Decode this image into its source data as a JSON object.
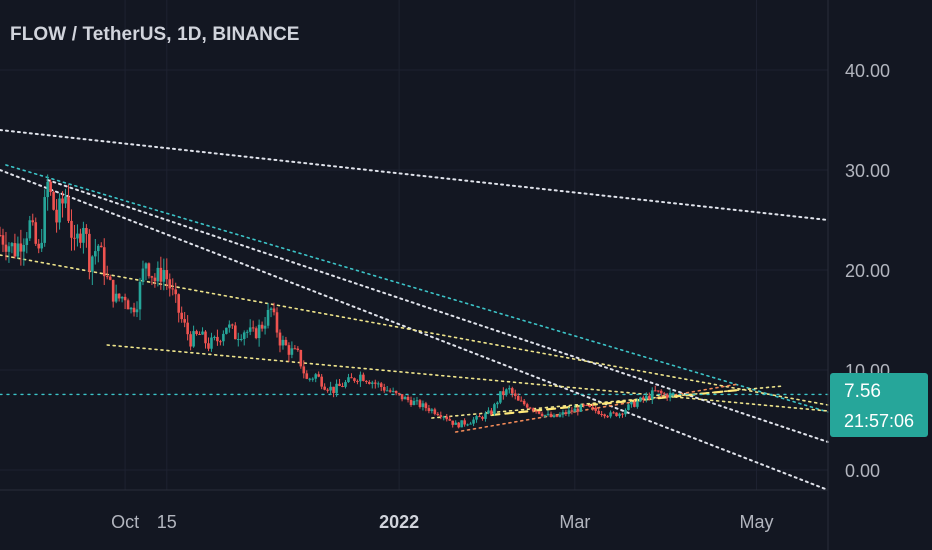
{
  "header": {
    "title": "FLOW / TetherUS, 1D, BINANCE"
  },
  "last_price": {
    "value": "7.56",
    "countdown": "21:57:06",
    "color": "#26a69a"
  },
  "colors": {
    "up": "#26a69a",
    "down": "#ef5350",
    "background": "#131722",
    "grid": "#1e2230",
    "white_line": "#e0e3eb",
    "cyan_line": "#3cc4c8",
    "yellow_line": "#f0e68c",
    "dashed_line": "#ffe97a",
    "orange_line": "#f28a58"
  },
  "chart_data": {
    "type": "candlestick",
    "symbol": "FLOW / TetherUS",
    "interval": "1D",
    "exchange": "BINANCE",
    "y_ticks": [
      "40.00",
      "30.00",
      "20.00",
      "10.00",
      "0.00"
    ],
    "y_tick_values": [
      40,
      30,
      20,
      10,
      0
    ],
    "ylim": [
      -2,
      45
    ],
    "x_ticks": [
      {
        "label": "Oct",
        "date": "2021-10-01"
      },
      {
        "label": "15",
        "date": "2021-10-15"
      },
      {
        "label": "2022",
        "date": "2022-01-01",
        "bold": true
      },
      {
        "label": "Mar",
        "date": "2022-03-01"
      },
      {
        "label": "May",
        "date": "2022-05-01"
      }
    ],
    "xlim": [
      "2021-08-20",
      "2022-05-25"
    ],
    "last_value": 7.56,
    "horizontal_level": 7.56,
    "close_path": [
      [
        "2021-08-20",
        23.5
      ],
      [
        "2021-08-25",
        22
      ],
      [
        "2021-08-30",
        24.5
      ],
      [
        "2021-09-02",
        21.5
      ],
      [
        "2021-09-05",
        28.5
      ],
      [
        "2021-09-08",
        25
      ],
      [
        "2021-09-11",
        27.5
      ],
      [
        "2021-09-14",
        22
      ],
      [
        "2021-09-17",
        25
      ],
      [
        "2021-09-19",
        21
      ],
      [
        "2021-09-22",
        22.5
      ],
      [
        "2021-09-25",
        19
      ],
      [
        "2021-09-28",
        17
      ],
      [
        "2021-10-01",
        17.5
      ],
      [
        "2021-10-03",
        16
      ],
      [
        "2021-10-05",
        17
      ],
      [
        "2021-10-08",
        21
      ],
      [
        "2021-10-11",
        19
      ],
      [
        "2021-10-14",
        20
      ],
      [
        "2021-10-17",
        17.5
      ],
      [
        "2021-10-20",
        15
      ],
      [
        "2021-10-23",
        13
      ],
      [
        "2021-10-26",
        13.5
      ],
      [
        "2021-10-29",
        12.5
      ],
      [
        "2021-11-01",
        13
      ],
      [
        "2021-11-04",
        14.5
      ],
      [
        "2021-11-07",
        13.5
      ],
      [
        "2021-11-10",
        14
      ],
      [
        "2021-11-13",
        13.5
      ],
      [
        "2021-11-16",
        14.5
      ],
      [
        "2021-11-19",
        16
      ],
      [
        "2021-11-22",
        13
      ],
      [
        "2021-11-25",
        12
      ],
      [
        "2021-11-28",
        11.5
      ],
      [
        "2021-12-01",
        9
      ],
      [
        "2021-12-04",
        9.5
      ],
      [
        "2021-12-07",
        8.5
      ],
      [
        "2021-12-10",
        8
      ],
      [
        "2021-12-13",
        8.5
      ],
      [
        "2021-12-16",
        9
      ],
      [
        "2021-12-19",
        9.5
      ],
      [
        "2021-12-22",
        9
      ],
      [
        "2021-12-25",
        8.5
      ],
      [
        "2021-12-28",
        8
      ],
      [
        "2021-12-31",
        7.5
      ],
      [
        "2022-01-04",
        7
      ],
      [
        "2022-01-08",
        6.5
      ],
      [
        "2022-01-12",
        6
      ],
      [
        "2022-01-16",
        5.5
      ],
      [
        "2022-01-20",
        4.5
      ],
      [
        "2022-01-24",
        4.8
      ],
      [
        "2022-01-28",
        5.2
      ],
      [
        "2022-02-01",
        5.8
      ],
      [
        "2022-02-04",
        7.5
      ],
      [
        "2022-02-07",
        8
      ],
      [
        "2022-02-10",
        6.8
      ],
      [
        "2022-02-13",
        6.5
      ],
      [
        "2022-02-16",
        6
      ],
      [
        "2022-02-19",
        5.5
      ],
      [
        "2022-02-22",
        5.2
      ],
      [
        "2022-02-25",
        5.6
      ],
      [
        "2022-03-01",
        6
      ],
      [
        "2022-03-04",
        6.3
      ],
      [
        "2022-03-07",
        6
      ],
      [
        "2022-03-10",
        5.8
      ],
      [
        "2022-03-13",
        5.5
      ],
      [
        "2022-03-16",
        5.7
      ],
      [
        "2022-03-19",
        6.3
      ],
      [
        "2022-03-22",
        6.8
      ],
      [
        "2022-03-25",
        7.2
      ],
      [
        "2022-03-28",
        7.8
      ],
      [
        "2022-03-31",
        7.5
      ],
      [
        "2022-04-03",
        7.56
      ]
    ],
    "trendlines": [
      {
        "style": "white-dotted",
        "from": [
          "2021-08-20",
          34
        ],
        "to": [
          "2022-05-25",
          25.0
        ]
      },
      {
        "style": "white-dotted",
        "from": [
          "2021-08-20",
          30
        ],
        "to": [
          "2022-05-25",
          -2
        ]
      },
      {
        "style": "white-dotted",
        "from": [
          "2021-09-05",
          29
        ],
        "to": [
          "2022-05-25",
          2.8
        ]
      },
      {
        "style": "cyan-dotted",
        "from": [
          "2021-08-22",
          30.5
        ],
        "to": [
          "2022-05-25",
          5.8
        ]
      },
      {
        "style": "yellow-dotted",
        "from": [
          "2021-08-20",
          21.5
        ],
        "to": [
          "2022-05-25",
          6.5
        ]
      },
      {
        "style": "yellow-dotted",
        "from": [
          "2021-09-25",
          12.5
        ],
        "to": [
          "2022-05-25",
          5.9
        ]
      },
      {
        "style": "yellow-dotted",
        "from": [
          "2022-01-12",
          5.2
        ],
        "to": [
          "2022-05-10",
          8.4
        ]
      },
      {
        "style": "orange-dotted",
        "from": [
          "2022-01-20",
          3.8
        ],
        "to": [
          "2022-04-25",
          8.6
        ]
      },
      {
        "style": "yellow-dashed",
        "from": [
          "2022-02-01",
          5.5
        ],
        "to": [
          "2022-04-25",
          8.0
        ]
      },
      {
        "style": "cyan-dotted-level",
        "from": [
          "2021-08-20",
          7.56
        ],
        "to": [
          "2022-05-25",
          7.56
        ]
      }
    ]
  }
}
